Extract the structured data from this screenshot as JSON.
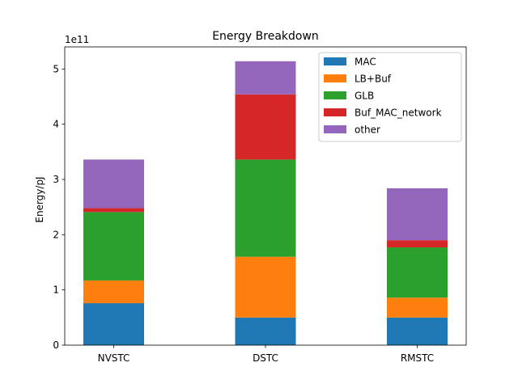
{
  "chart_data": {
    "type": "bar",
    "stacked": true,
    "title": "Energy Breakdown",
    "xlabel": "",
    "ylabel": "Energy/pJ",
    "scale_label": "1e11",
    "scale": 100000000000,
    "categories": [
      "NVSTC",
      "DSTC",
      "RMSTC"
    ],
    "ylim": [
      0,
      5.4
    ],
    "yticks": [
      0,
      1,
      2,
      3,
      4,
      5
    ],
    "ytick_labels": [
      "0",
      "1",
      "2",
      "3",
      "4",
      "5"
    ],
    "grid": false,
    "legend_position": "top-right",
    "series": [
      {
        "name": "MAC",
        "color": "#1f77b4",
        "values": [
          0.76,
          0.5,
          0.5
        ]
      },
      {
        "name": "LB+Buf",
        "color": "#ff7f0e",
        "values": [
          0.41,
          1.1,
          0.36
        ]
      },
      {
        "name": "GLB",
        "color": "#2ca02c",
        "values": [
          1.24,
          1.76,
          0.91
        ]
      },
      {
        "name": "Buf_MAC_network",
        "color": "#d62728",
        "values": [
          0.07,
          1.18,
          0.13
        ]
      },
      {
        "name": "other",
        "color": "#9467bd",
        "values": [
          0.88,
          0.6,
          0.94
        ]
      }
    ]
  }
}
